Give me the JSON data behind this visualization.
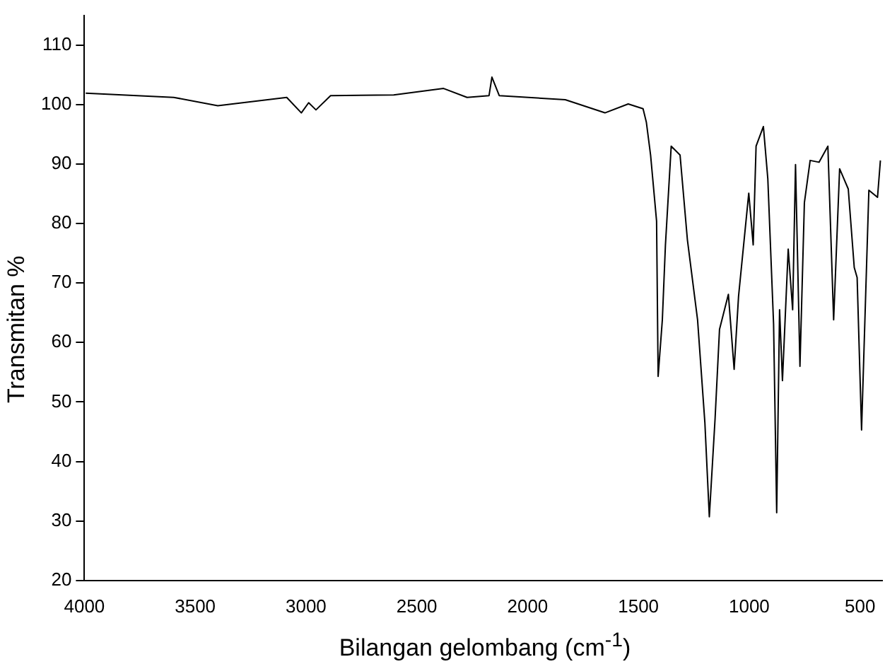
{
  "chart_data": {
    "type": "line",
    "xlabel": "Bilangan gelombang (cm$^{-1}$)",
    "ylabel": "Transmitan %",
    "xlim": [
      4000,
      400
    ],
    "ylim": [
      20,
      115
    ],
    "xticks": [
      4000,
      3500,
      3000,
      2500,
      2000,
      1500,
      1000,
      500
    ],
    "yticks": [
      20,
      30,
      40,
      50,
      60,
      70,
      80,
      90,
      100,
      110
    ],
    "grid": false,
    "legend": false,
    "marker": "none",
    "line_style": "solid",
    "series": [
      {
        "color": "#000000",
        "x": [
          3994,
          3597,
          3398,
          3087,
          3021,
          2988,
          2955,
          2889,
          2604,
          2379,
          2273,
          2174,
          2161,
          2128,
          1830,
          1651,
          1546,
          1479,
          1464,
          1445,
          1418,
          1411,
          1392,
          1378,
          1352,
          1312,
          1279,
          1233,
          1200,
          1180,
          1154,
          1134,
          1094,
          1068,
          1048,
          1002,
          982,
          969,
          936,
          916,
          890,
          876,
          863,
          850,
          824,
          804,
          791,
          771,
          751,
          725,
          685,
          645,
          619,
          592,
          553,
          526,
          513,
          493,
          474,
          460,
          421,
          408
        ],
        "values": [
          101.9,
          101.2,
          99.8,
          101.2,
          98.6,
          100.3,
          99.1,
          101.5,
          101.6,
          102.7,
          101.2,
          101.5,
          104.6,
          101.5,
          100.8,
          98.6,
          100.1,
          99.3,
          97.0,
          91.5,
          80.4,
          54.3,
          63.8,
          76.4,
          93.0,
          91.5,
          77.3,
          63.8,
          46.5,
          30.7,
          47.2,
          62.2,
          68.1,
          55.5,
          67.8,
          85.1,
          76.4,
          93.0,
          96.3,
          87.5,
          63.1,
          31.4,
          65.5,
          53.6,
          75.7,
          65.5,
          89.9,
          56.0,
          83.5,
          90.6,
          90.3,
          93.0,
          63.8,
          89.2,
          85.8,
          72.6,
          70.9,
          45.3,
          68.6,
          85.6,
          84.4,
          90.6
        ]
      }
    ]
  }
}
